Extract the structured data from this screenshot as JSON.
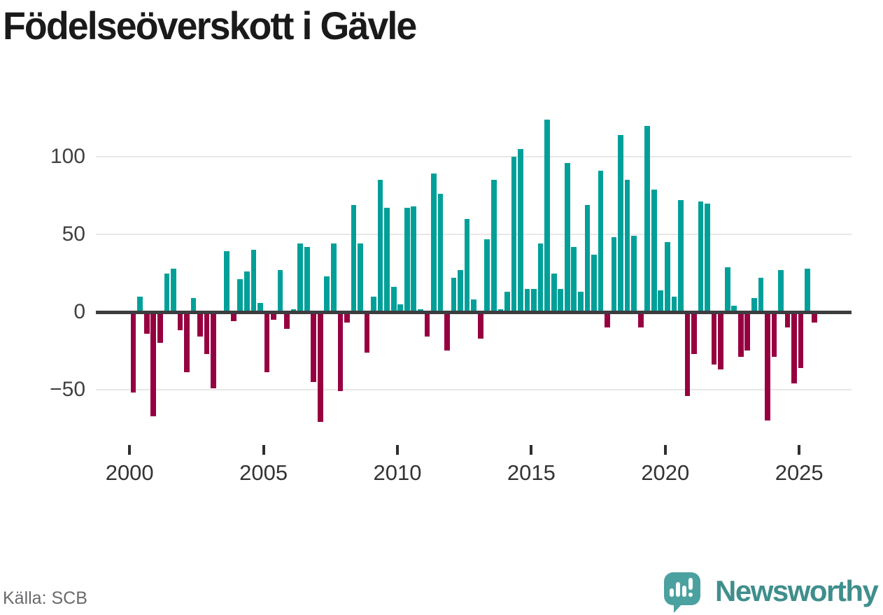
{
  "title": "Födelseöverskott i Gävle",
  "source": "Källa: SCB",
  "branding": {
    "wordmark": "Newsworthy",
    "logo_icon": "speech-bubble-bar-chart"
  },
  "colors": {
    "positive": "#00a099",
    "negative": "#970040",
    "axis_line": "#3d3d40",
    "gridline": "#e7e7e7",
    "title_text": "#1a1a1a",
    "tick_text": "#333333",
    "source_text": "#6a6a6e",
    "brand_teal": "#3f8e8c",
    "logo_bubble": "#4ba1a0"
  },
  "chart_data": {
    "type": "bar",
    "title": "Födelseöverskott i Gävle",
    "frequency": "quarterly",
    "start_period": "2000 Q1",
    "end_period": "2025 Q3",
    "values": [
      -51,
      10,
      -13,
      -66,
      -19,
      25,
      28,
      -11,
      -38,
      9,
      -15,
      -26,
      -48,
      0,
      39,
      -5,
      21,
      26,
      40,
      6,
      -38,
      -4,
      27,
      -10,
      2,
      44,
      42,
      -44,
      -70,
      23,
      44,
      -50,
      -6,
      69,
      44,
      -25,
      10,
      85,
      67,
      16,
      5,
      67,
      68,
      2,
      -15,
      89,
      76,
      -24,
      22,
      27,
      60,
      8,
      -16,
      47,
      85,
      2,
      13,
      100,
      105,
      15,
      15,
      44,
      124,
      25,
      15,
      96,
      42,
      13,
      69,
      37,
      91,
      -9,
      48,
      114,
      85,
      49,
      -9,
      120,
      79,
      14,
      45,
      10,
      72,
      -53,
      -26,
      71,
      70,
      -33,
      -36,
      29,
      4,
      -28,
      -24,
      9,
      22,
      -69,
      -28,
      27,
      -9,
      -45,
      -35,
      28,
      -6
    ],
    "y_ticks": [
      "100",
      "50",
      "0",
      "−50"
    ],
    "y_tick_values": [
      100,
      50,
      0,
      -50
    ],
    "x_ticks": [
      "2000",
      "2005",
      "2010",
      "2015",
      "2020",
      "2025"
    ],
    "x_tick_years": [
      2000,
      2005,
      2010,
      2015,
      2020,
      2025
    ],
    "ylim": [
      -75,
      135
    ],
    "grid": "horizontal",
    "legend": "none",
    "positive_color": "#00a099",
    "negative_color": "#970040"
  }
}
